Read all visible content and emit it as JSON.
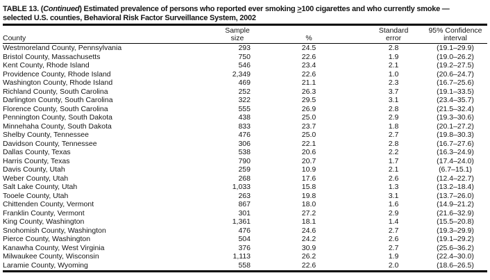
{
  "table": {
    "title": {
      "line1_prefix": "TABLE 13. (",
      "line1_continued": "Continued",
      "line1_mid": ") Estimated prevalence of persons who reported ever smoking ",
      "line1_geq": ">",
      "line1_suffix": "100 cigarettes and who currently smoke —",
      "line2": "selected U.S. counties, Behavioral Risk Factor Surveillance System, 2002"
    },
    "columns": {
      "county": "County",
      "sample_line1": "Sample",
      "sample_line2": "size",
      "percent": "%",
      "se_line1": "Standard",
      "se_line2": "error",
      "ci_line1": "95% Confidence",
      "ci_line2": "interval"
    },
    "rows": [
      {
        "county": "Westmoreland County, Pennsylvania",
        "sample": "293",
        "percent": "24.5",
        "se": "2.8",
        "ci": "(19.1–29.9)"
      },
      {
        "county": "Bristol County, Massachusetts",
        "sample": "750",
        "percent": "22.6",
        "se": "1.9",
        "ci": "(19.0–26.2)"
      },
      {
        "county": "Kent County, Rhode Island",
        "sample": "546",
        "percent": "23.4",
        "se": "2.1",
        "ci": "(19.2–27.5)"
      },
      {
        "county": "Providence County, Rhode Island",
        "sample": "2,349",
        "percent": "22.6",
        "se": "1.0",
        "ci": "(20.6–24.7)"
      },
      {
        "county": "Washington County, Rhode Island",
        "sample": "469",
        "percent": "21.1",
        "se": "2.3",
        "ci": "(16.7–25.6)"
      },
      {
        "county": "Richland County, South Carolina",
        "sample": "252",
        "percent": "26.3",
        "se": "3.7",
        "ci": "(19.1–33.5)"
      },
      {
        "county": "Darlington County, South Carolina",
        "sample": "322",
        "percent": "29.5",
        "se": "3.1",
        "ci": "(23.4–35.7)"
      },
      {
        "county": "Florence County, South Carolina",
        "sample": "555",
        "percent": "26.9",
        "se": "2.8",
        "ci": "(21.5–32.4)"
      },
      {
        "county": "Pennington County, South Dakota",
        "sample": "438",
        "percent": "25.0",
        "se": "2.9",
        "ci": "(19.3–30.6)"
      },
      {
        "county": "Minnehaha County, South Dakota",
        "sample": "833",
        "percent": "23.7",
        "se": "1.8",
        "ci": "(20.1–27.2)"
      },
      {
        "county": "Shelby County, Tennessee",
        "sample": "476",
        "percent": "25.0",
        "se": "2.7",
        "ci": "(19.8–30.3)"
      },
      {
        "county": "Davidson County, Tennessee",
        "sample": "306",
        "percent": "22.1",
        "se": "2.8",
        "ci": "(16.7–27.6)"
      },
      {
        "county": "Dallas County, Texas",
        "sample": "538",
        "percent": "20.6",
        "se": "2.2",
        "ci": "(16.3–24.9)"
      },
      {
        "county": "Harris County, Texas",
        "sample": "790",
        "percent": "20.7",
        "se": "1.7",
        "ci": "(17.4–24.0)"
      },
      {
        "county": "Davis County, Utah",
        "sample": "259",
        "percent": "10.9",
        "se": "2.1",
        "ci": "(6.7–15.1)"
      },
      {
        "county": "Weber County, Utah",
        "sample": "268",
        "percent": "17.6",
        "se": "2.6",
        "ci": "(12.4–22.7)"
      },
      {
        "county": "Salt Lake County, Utah",
        "sample": "1,033",
        "percent": "15.8",
        "se": "1.3",
        "ci": "(13.2–18.4)"
      },
      {
        "county": "Tooele County, Utah",
        "sample": "263",
        "percent": "19.8",
        "se": "3.1",
        "ci": "(13.7–26.0)"
      },
      {
        "county": "Chittenden County, Vermont",
        "sample": "867",
        "percent": "18.0",
        "se": "1.6",
        "ci": "(14.9–21.2)"
      },
      {
        "county": "Franklin County, Vermont",
        "sample": "301",
        "percent": "27.2",
        "se": "2.9",
        "ci": "(21.6–32.9)"
      },
      {
        "county": "King County, Washington",
        "sample": "1,361",
        "percent": "18.1",
        "se": "1.4",
        "ci": "(15.5–20.8)"
      },
      {
        "county": "Snohomish County, Washington",
        "sample": "476",
        "percent": "24.6",
        "se": "2.7",
        "ci": "(19.3–29.9)"
      },
      {
        "county": "Pierce County, Washington",
        "sample": "504",
        "percent": "24.2",
        "se": "2.6",
        "ci": "(19.1–29.2)"
      },
      {
        "county": "Kanawha County, West Virginia",
        "sample": "376",
        "percent": "30.9",
        "se": "2.7",
        "ci": "(25.6–36.2)"
      },
      {
        "county": "Milwaukee County, Wisconsin",
        "sample": "1,113",
        "percent": "26.2",
        "se": "1.9",
        "ci": "(22.4–30.0)"
      },
      {
        "county": "Laramie County, Wyoming",
        "sample": "558",
        "percent": "22.6",
        "se": "2.0",
        "ci": "(18.6–26.5)"
      }
    ]
  }
}
